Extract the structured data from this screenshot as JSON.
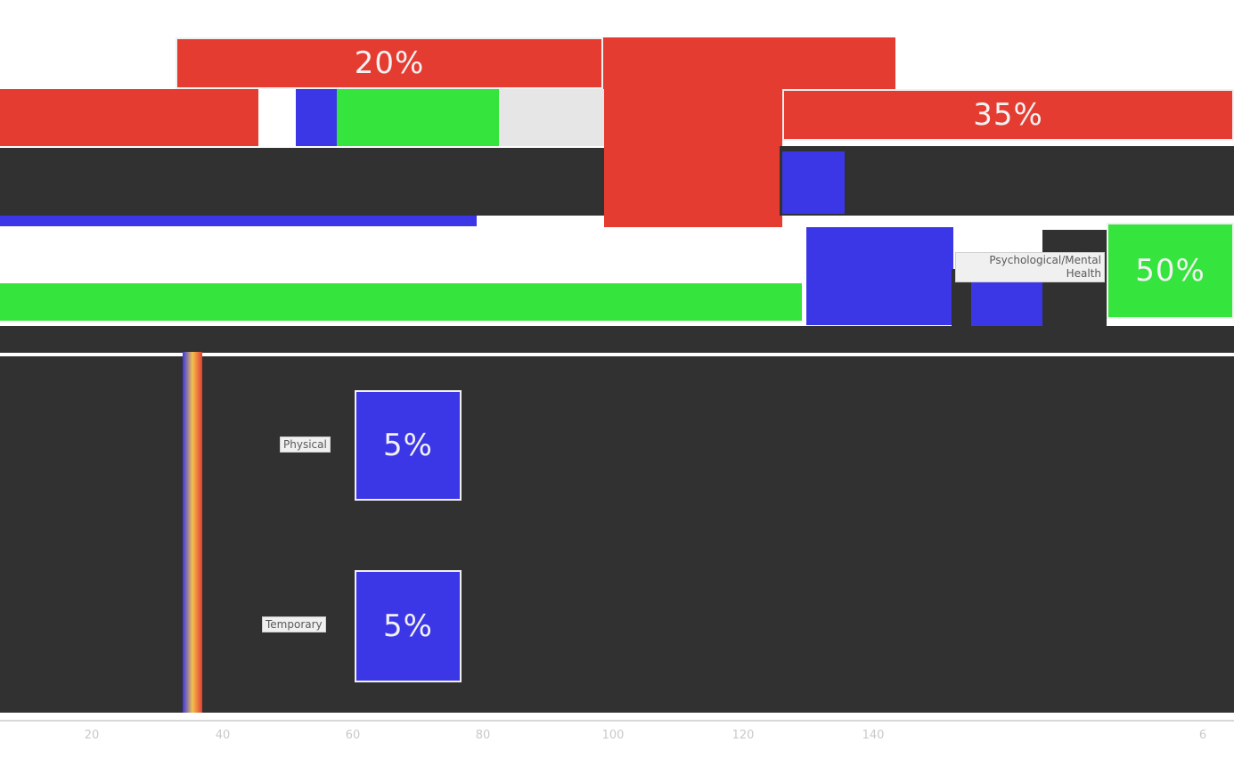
{
  "chart_data": {
    "type": "bar",
    "orientation": "horizontal",
    "title": "",
    "xlabel": "",
    "ylabel": "",
    "value_format": "percent",
    "categories": [
      "",
      "",
      "Psychological/Mental Health",
      "Physical",
      "Temporary"
    ],
    "values": [
      20,
      35,
      50,
      5,
      5
    ],
    "value_labels": [
      "20%",
      "35%",
      "50%",
      "5%",
      "5%"
    ],
    "x_ticks": [
      "20",
      "40",
      "60",
      "80",
      "100",
      "120",
      "140",
      "6"
    ],
    "colors": {
      "red": "#e53c32",
      "blue": "#3c37e6",
      "green": "#35e53d",
      "dark": "#313131"
    },
    "grid": false,
    "legend": "none"
  }
}
